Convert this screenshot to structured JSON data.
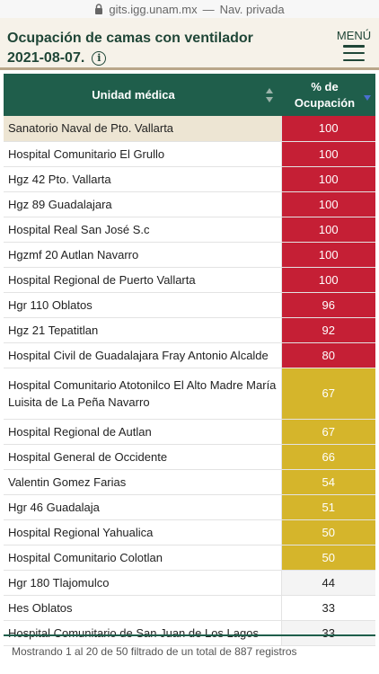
{
  "browser": {
    "url": "gits.igg.unam.mx",
    "separator": "—",
    "mode": "Nav. privada"
  },
  "header": {
    "title_line1": "Ocupación de camas con ventilador",
    "title_line2": "2021-08-07.",
    "info_icon": "info-icon",
    "menu_label": "MENÚ",
    "menu_icon": "hamburger-icon"
  },
  "table": {
    "columns": {
      "unit": "Unidad médica",
      "pct_line1": "% de",
      "pct_line2": "Ocupación"
    },
    "colors": {
      "red": "#c51f35",
      "yellow": "#d5b52b",
      "header": "#1f5e4b",
      "selected": "#ede5d3"
    },
    "rows": [
      {
        "unit": "Sanatorio Naval de Pto. Vallarta",
        "pct": "100",
        "level": "red"
      },
      {
        "unit": "Hospital Comunitario El Grullo",
        "pct": "100",
        "level": "red"
      },
      {
        "unit": "Hgz 42 Pto. Vallarta",
        "pct": "100",
        "level": "red"
      },
      {
        "unit": "Hgz 89 Guadalajara",
        "pct": "100",
        "level": "red"
      },
      {
        "unit": "Hospital Real San José S.c",
        "pct": "100",
        "level": "red"
      },
      {
        "unit": "Hgzmf 20 Autlan Navarro",
        "pct": "100",
        "level": "red"
      },
      {
        "unit": "Hospital Regional de Puerto Vallarta",
        "pct": "100",
        "level": "red"
      },
      {
        "unit": "Hgr 110 Oblatos",
        "pct": "96",
        "level": "red"
      },
      {
        "unit": "Hgz 21 Tepatitlan",
        "pct": "92",
        "level": "red"
      },
      {
        "unit": "Hospital Civil de Guadalajara Fray Antonio Alcalde",
        "pct": "80",
        "level": "red"
      },
      {
        "unit": "Hospital Comunitario Atotonilco El Alto Madre María Luisita de La Peña Navarro",
        "pct": "67",
        "level": "yellow"
      },
      {
        "unit": "Hospital Regional de Autlan",
        "pct": "67",
        "level": "yellow"
      },
      {
        "unit": "Hospital General de Occidente",
        "pct": "66",
        "level": "yellow"
      },
      {
        "unit": "Valentin Gomez Farias",
        "pct": "54",
        "level": "yellow"
      },
      {
        "unit": "Hgr 46 Guadalaja",
        "pct": "51",
        "level": "yellow"
      },
      {
        "unit": "Hospital Regional Yahualica",
        "pct": "50",
        "level": "yellow"
      },
      {
        "unit": "Hospital Comunitario Colotlan",
        "pct": "50",
        "level": "yellow"
      },
      {
        "unit": "Hgr 180 Tlajomulco",
        "pct": "44",
        "level": "plain"
      },
      {
        "unit": "Hes Oblatos",
        "pct": "33",
        "level": "plain"
      },
      {
        "unit": "Hospital Comunitario de San Juan de Los Lagos",
        "pct": "33",
        "level": "plain"
      }
    ]
  },
  "footer": {
    "info": "Mostrando 1 al 20 de 50 filtrado de un total de 887 registros"
  }
}
